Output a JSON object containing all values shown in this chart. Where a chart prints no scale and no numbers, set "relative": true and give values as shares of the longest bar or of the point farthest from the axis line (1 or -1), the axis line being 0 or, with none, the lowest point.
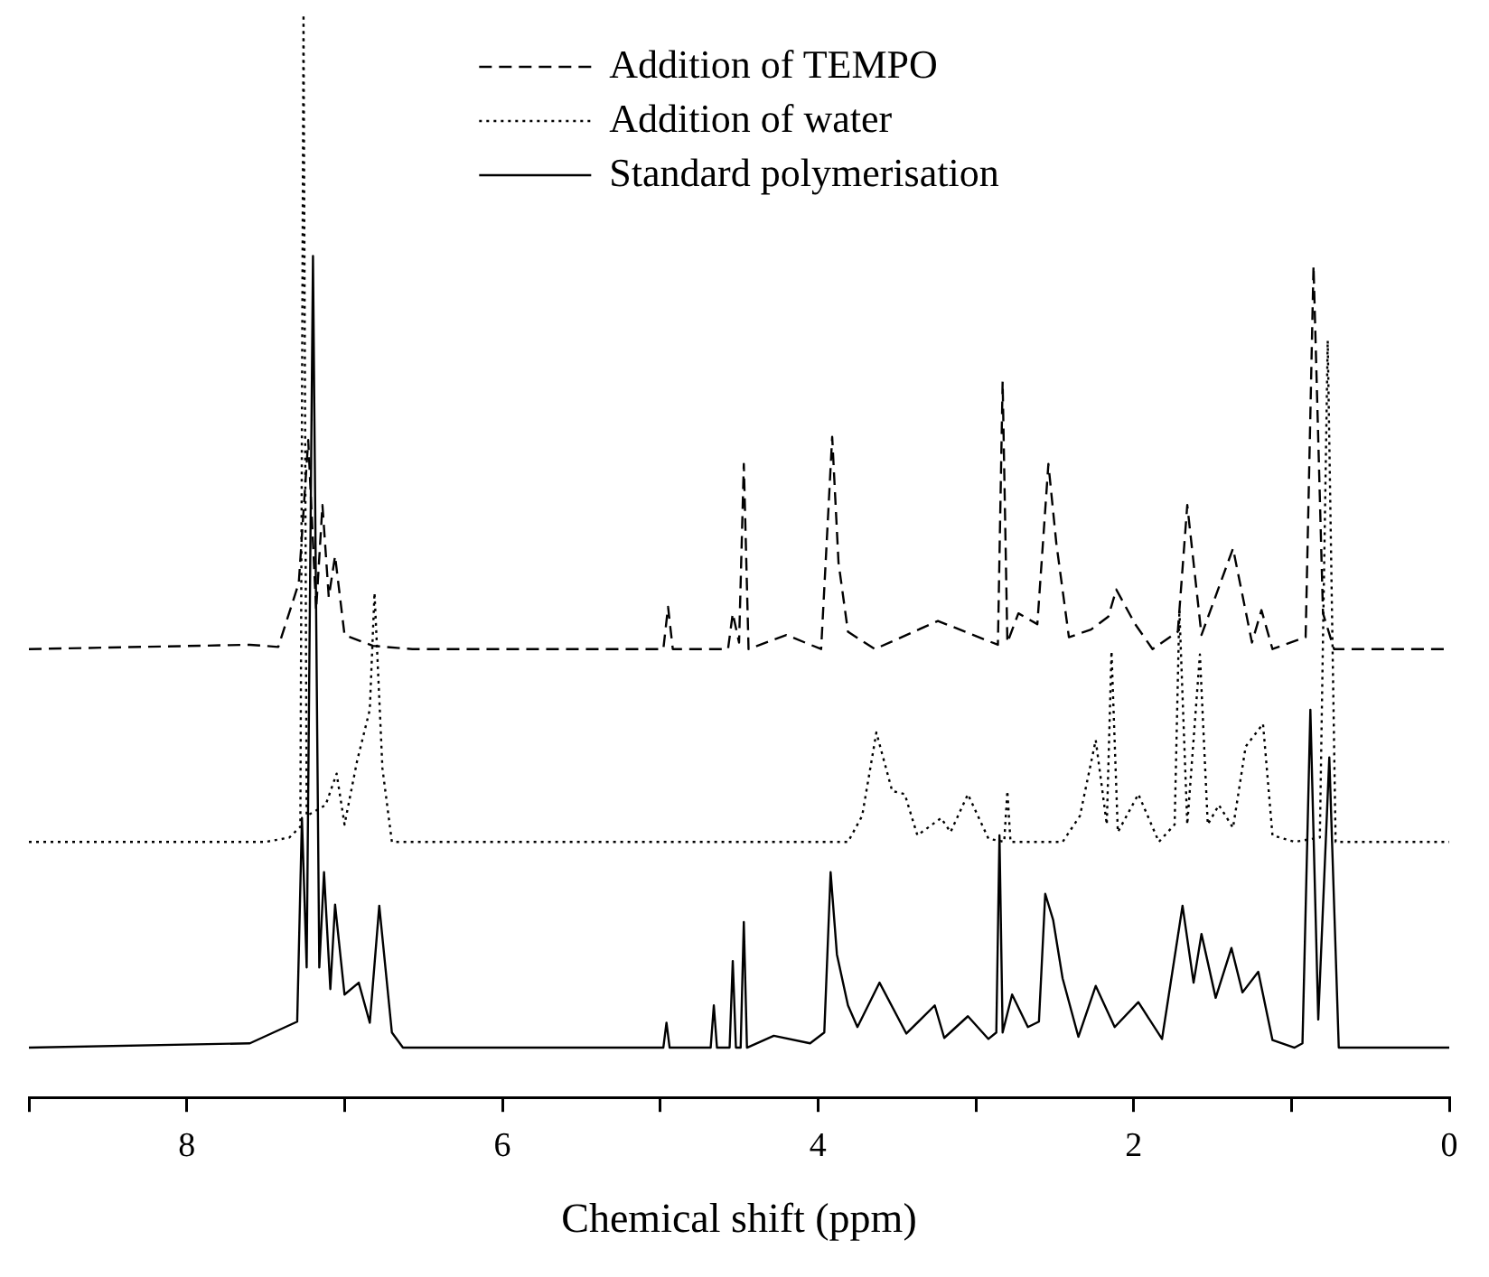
{
  "chart_data": {
    "type": "line",
    "xlabel": "Chemical shift (ppm)",
    "relative": true,
    "xlim": [
      9,
      0
    ],
    "xticks": [
      {
        "value": 9,
        "label": null
      },
      8,
      {
        "value": 7,
        "label": null
      },
      6,
      {
        "value": 5,
        "label": null
      },
      4,
      {
        "value": 3,
        "label": null
      },
      2,
      {
        "value": 1,
        "label": null
      },
      0
    ],
    "legend": "top",
    "grid": false,
    "series": [
      {
        "name": "Addition of TEMPO",
        "color": "#000000",
        "line_style": "dashed",
        "x": [
          9,
          7.6,
          7.42,
          7.29,
          7.23,
          7.18,
          7.14,
          7.1,
          7.06,
          7.0,
          6.82,
          6.57,
          4.98,
          4.95,
          4.92,
          4.57,
          4.54,
          4.5,
          4.47,
          4.44,
          4.2,
          3.98,
          3.91,
          3.87,
          3.81,
          3.64,
          3.24,
          2.86,
          2.83,
          2.8,
          2.73,
          2.61,
          2.54,
          2.49,
          2.41,
          2.27,
          2.16,
          2.11,
          1.99,
          1.88,
          1.72,
          1.66,
          1.57,
          1.37,
          1.25,
          1.19,
          1.12,
          0.91,
          0.86,
          0.8,
          0.73,
          0
        ],
        "values": [
          0.414,
          0.418,
          0.416,
          0.475,
          0.607,
          0.45,
          0.547,
          0.462,
          0.5,
          0.427,
          0.417,
          0.414,
          0.414,
          0.453,
          0.414,
          0.414,
          0.447,
          0.42,
          0.585,
          0.414,
          0.427,
          0.414,
          0.61,
          0.494,
          0.43,
          0.414,
          0.44,
          0.418,
          0.661,
          0.42,
          0.447,
          0.437,
          0.585,
          0.512,
          0.425,
          0.432,
          0.444,
          0.469,
          0.437,
          0.414,
          0.43,
          0.547,
          0.427,
          0.507,
          0.42,
          0.45,
          0.414,
          0.425,
          0.768,
          0.447,
          0.414,
          0.414
        ]
      },
      {
        "name": "Addition of water",
        "color": "#000000",
        "line_style": "dotted",
        "x": [
          9,
          7.5,
          7.35,
          7.28,
          7.26,
          7.24,
          7.12,
          7.05,
          7.0,
          6.92,
          6.84,
          6.81,
          6.76,
          6.7,
          3.81,
          3.72,
          3.63,
          3.53,
          3.45,
          3.37,
          3.22,
          3.16,
          3.05,
          2.92,
          2.82,
          2.8,
          2.78,
          2.45,
          2.34,
          2.24,
          2.17,
          2.14,
          2.1,
          1.97,
          1.84,
          1.74,
          1.71,
          1.66,
          1.58,
          1.53,
          1.46,
          1.37,
          1.29,
          1.18,
          1.12,
          0.98,
          0.82,
          0.77,
          0.72,
          0
        ],
        "values": [
          0.236,
          0.236,
          0.24,
          0.25,
          1.0,
          0.26,
          0.27,
          0.299,
          0.252,
          0.311,
          0.358,
          0.466,
          0.304,
          0.236,
          0.236,
          0.26,
          0.337,
          0.283,
          0.28,
          0.242,
          0.258,
          0.245,
          0.28,
          0.239,
          0.236,
          0.283,
          0.236,
          0.236,
          0.26,
          0.33,
          0.252,
          0.412,
          0.245,
          0.28,
          0.236,
          0.252,
          0.45,
          0.252,
          0.409,
          0.252,
          0.27,
          0.249,
          0.324,
          0.345,
          0.242,
          0.236,
          0.24,
          0.699,
          0.236,
          0.236
        ]
      },
      {
        "name": "Standard polymerisation",
        "color": "#000000",
        "line_style": "solid",
        "x": [
          9,
          7.6,
          7.3,
          7.27,
          7.24,
          7.2,
          7.16,
          7.13,
          7.09,
          7.06,
          7.0,
          6.91,
          6.84,
          6.78,
          6.7,
          6.63,
          5.1,
          4.98,
          4.96,
          4.94,
          4.68,
          4.66,
          4.64,
          4.56,
          4.54,
          4.52,
          4.49,
          4.47,
          4.45,
          4.28,
          4.05,
          3.96,
          3.92,
          3.88,
          3.81,
          3.75,
          3.61,
          3.44,
          3.26,
          3.2,
          3.05,
          2.92,
          2.87,
          2.85,
          2.83,
          2.77,
          2.67,
          2.6,
          2.56,
          2.51,
          2.45,
          2.35,
          2.24,
          2.12,
          1.97,
          1.82,
          1.69,
          1.62,
          1.57,
          1.48,
          1.38,
          1.31,
          1.21,
          1.12,
          0.98,
          0.93,
          0.88,
          0.83,
          0.76,
          0.7,
          0
        ],
        "values": [
          0.046,
          0.05,
          0.07,
          0.258,
          0.12,
          0.777,
          0.12,
          0.208,
          0.1,
          0.178,
          0.095,
          0.106,
          0.069,
          0.177,
          0.06,
          0.046,
          0.046,
          0.046,
          0.069,
          0.046,
          0.046,
          0.085,
          0.046,
          0.046,
          0.126,
          0.046,
          0.046,
          0.162,
          0.046,
          0.057,
          0.05,
          0.06,
          0.208,
          0.132,
          0.085,
          0.065,
          0.106,
          0.059,
          0.085,
          0.055,
          0.075,
          0.054,
          0.06,
          0.242,
          0.06,
          0.095,
          0.065,
          0.07,
          0.188,
          0.164,
          0.11,
          0.056,
          0.103,
          0.065,
          0.088,
          0.054,
          0.177,
          0.106,
          0.151,
          0.092,
          0.138,
          0.097,
          0.116,
          0.053,
          0.046,
          0.05,
          0.358,
          0.072,
          0.314,
          0.046,
          0.046
        ]
      }
    ]
  }
}
